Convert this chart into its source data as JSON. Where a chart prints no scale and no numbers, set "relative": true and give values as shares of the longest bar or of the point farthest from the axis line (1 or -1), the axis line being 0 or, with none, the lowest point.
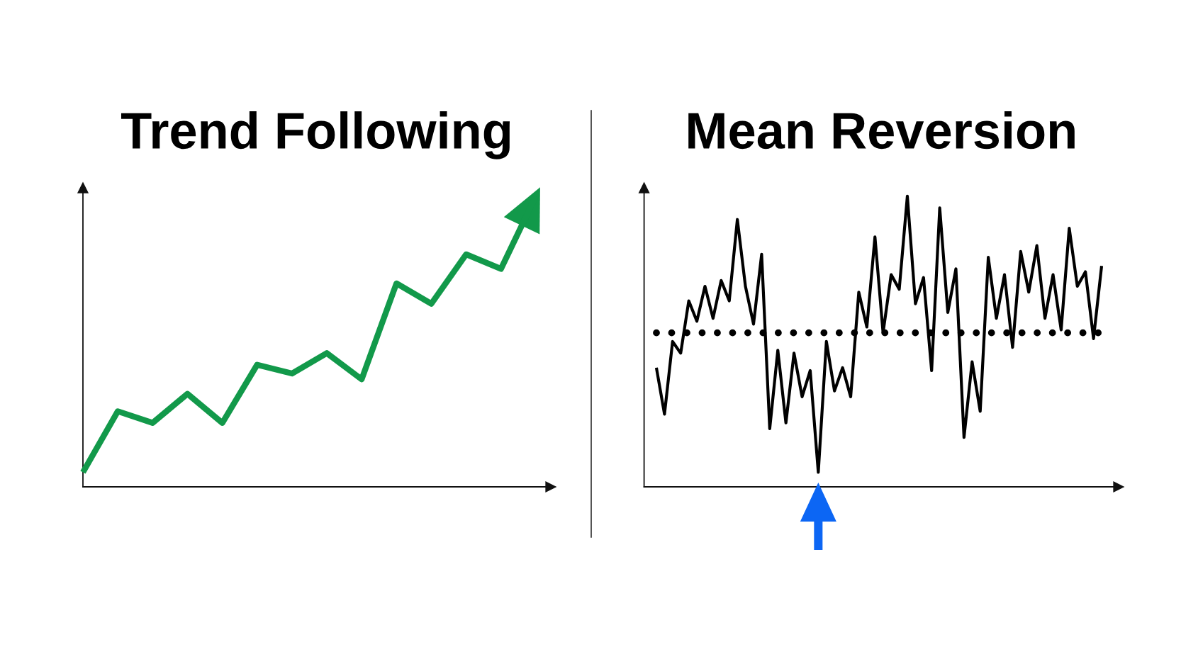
{
  "chart_data": [
    {
      "type": "line",
      "title": "Trend Following",
      "relative": true,
      "categories": [
        null,
        null,
        null,
        null,
        null,
        null,
        null,
        null,
        null,
        null,
        null,
        null,
        null,
        null
      ],
      "series": [
        {
          "color": "#12994a",
          "values": [
            0.05,
            0.26,
            0.22,
            0.32,
            0.22,
            0.42,
            0.39,
            0.46,
            0.37,
            0.7,
            0.63,
            0.8,
            0.75,
            1.0
          ]
        }
      ]
    },
    {
      "type": "line",
      "title": "Mean Reversion",
      "relative": true,
      "categories": [
        null,
        null,
        null,
        null,
        null,
        null,
        null,
        null,
        null,
        null,
        null,
        null,
        null,
        null,
        null,
        null,
        null,
        null,
        null,
        null,
        null,
        null,
        null,
        null,
        null,
        null,
        null,
        null,
        null,
        null,
        null,
        null,
        null,
        null,
        null,
        null,
        null,
        null,
        null,
        null,
        null,
        null,
        null,
        null,
        null,
        null,
        null,
        null,
        null,
        null,
        null,
        null,
        null,
        null,
        null,
        null
      ],
      "series": [
        {
          "color": "#000000",
          "values": [
            0.41,
            0.25,
            0.5,
            0.46,
            0.64,
            0.57,
            0.69,
            0.58,
            0.71,
            0.64,
            0.92,
            0.69,
            0.56,
            0.8,
            0.2,
            0.47,
            0.22,
            0.46,
            0.31,
            0.4,
            0.05,
            0.5,
            0.33,
            0.41,
            0.31,
            0.67,
            0.55,
            0.86,
            0.53,
            0.73,
            0.68,
            1.0,
            0.63,
            0.72,
            0.4,
            0.96,
            0.6,
            0.75,
            0.17,
            0.43,
            0.26,
            0.79,
            0.58,
            0.73,
            0.48,
            0.81,
            0.67,
            0.83,
            0.58,
            0.73,
            0.54,
            0.89,
            0.69,
            0.74,
            0.51,
            0.76
          ]
        }
      ],
      "ref_lines": [
        {
          "axis": "y",
          "value": 0.53,
          "line_style": "dotted",
          "color": "#000000"
        }
      ]
    }
  ]
}
